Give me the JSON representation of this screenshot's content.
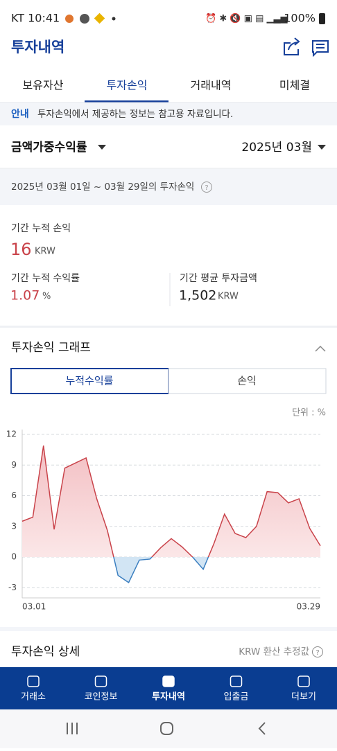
{
  "status_bar": {
    "time": "KT 10:41",
    "battery": "100%"
  },
  "header": {
    "title": "투자내역"
  },
  "tabs": [
    "보유자산",
    "투자손익",
    "거래내역",
    "미체결"
  ],
  "active_tab": 1,
  "notice": {
    "label": "안내",
    "text": "투자손익에서 제공하는 정보는 참고용 자료입니다."
  },
  "selector": {
    "metric": "금액가중수익률",
    "month": "2025년 03월"
  },
  "period": "2025년 03월 01일 ~ 03월 29일의 투자손익",
  "summary": {
    "cum_pnl_label": "기간 누적 손익",
    "cum_pnl_value": "16",
    "cum_pnl_unit": "KRW",
    "cum_return_label": "기간 누적 수익률",
    "cum_return_value": "1.07",
    "cum_return_unit": "%",
    "avg_label": "기간 평균 투자금액",
    "avg_value": "1,502",
    "avg_unit": "KRW"
  },
  "graph_section": {
    "title": "투자손익 그래프",
    "toggles": [
      "누적수익률",
      "손익"
    ],
    "active_toggle": 0,
    "unit": "단위 : %"
  },
  "chart_data": {
    "type": "line",
    "categories": [
      "03.01",
      null,
      null,
      null,
      null,
      null,
      null,
      null,
      null,
      null,
      null,
      null,
      null,
      null,
      null,
      null,
      null,
      null,
      null,
      null,
      null,
      null,
      null,
      null,
      null,
      null,
      null,
      null,
      "03.29"
    ],
    "values": [
      3.5,
      3.9,
      10.9,
      2.7,
      8.7,
      9.2,
      9.7,
      5.7,
      2.6,
      -1.8,
      -2.5,
      -0.3,
      -0.2,
      0.9,
      1.8,
      1.0,
      0.0,
      -1.2,
      1.3,
      4.2,
      2.3,
      1.9,
      3.0,
      6.4,
      6.3,
      5.3,
      5.7,
      2.8,
      1.1
    ],
    "ylim": [
      -4,
      12
    ],
    "yticks": [
      -3,
      0,
      3,
      6,
      9,
      12
    ],
    "grid": true,
    "color": "#c9434a",
    "negative_color": "#3b7fc0"
  },
  "detail": {
    "title": "투자손익 상세",
    "note": "KRW 환산 추정값"
  },
  "bottom_nav": [
    "거래소",
    "코인정보",
    "투자내역",
    "입출금",
    "더보기"
  ],
  "active_nav": 2
}
